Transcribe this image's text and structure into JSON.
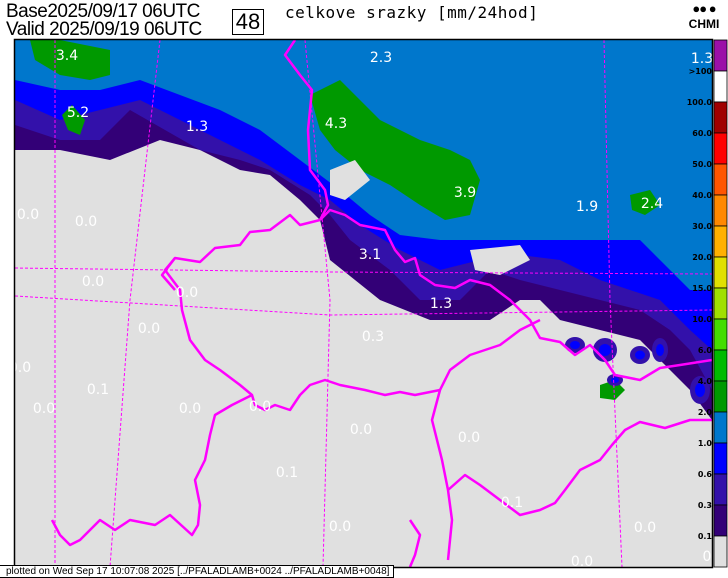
{
  "header": {
    "base_label": "Base",
    "base_time": "2025/09/17 06UTC",
    "valid_label": "Valid",
    "valid_time": "2025/09/19 06UTC",
    "forecast_hour": "48",
    "title": "celkove srazky [mm/24hod]",
    "logo_text": "CHMI"
  },
  "map": {
    "background_color": "#e0e0e0",
    "border_color": "#ff00ff",
    "value_labels": [
      "3.4",
      "2.3",
      "1.3",
      "5.2",
      "1.3",
      "4.3",
      "3.9",
      "1.9",
      "2.4",
      "0.0",
      "0.0",
      "3.1",
      "0.0",
      "0.0",
      "1.3",
      "0.0",
      "0.3",
      "0.0",
      "0.1",
      "0.0",
      "0.0",
      "0.0",
      "0.0",
      "0.0",
      "0.1",
      "0.1",
      "0.0",
      "0.0",
      "0.0",
      "0"
    ]
  },
  "legend": {
    "labels": [
      ">100",
      "100.0",
      "60.0",
      "50.0",
      "40.0",
      "30.0",
      "20.0",
      "15.0",
      "10.0",
      "6.0",
      "4.0",
      "2.0",
      "1.0",
      "0.6",
      "0.3",
      "0.1"
    ],
    "colors": [
      "#9b10a8",
      "#ffffff",
      "#a00000",
      "#ff0000",
      "#ff5500",
      "#ff8800",
      "#ffb000",
      "#e0e000",
      "#a0e000",
      "#44dd00",
      "#00bb00",
      "#009900",
      "#0077cc",
      "#0000ff",
      "#3311aa",
      "#330077",
      "#e0e0e0"
    ]
  },
  "footer": {
    "text": "plotted on Wed Sep 17 10:07:08 2025 [../PFALADLAMB+0024 ../PFALADLAMB+0048]"
  }
}
